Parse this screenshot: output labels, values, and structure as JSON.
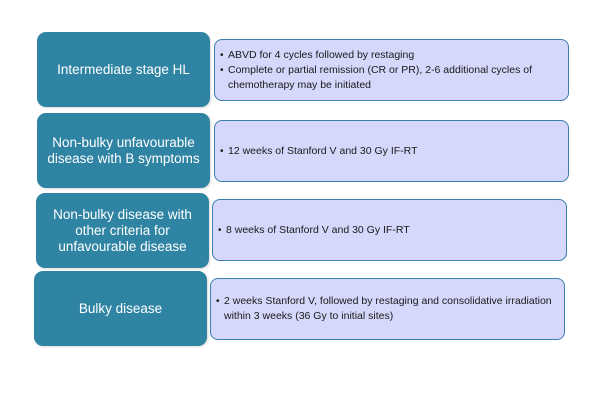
{
  "rows": [
    {
      "label": "Intermediate stage HL",
      "bullets": [
        "ABVD for 4 cycles followed by restaging",
        "Complete or partial remission (CR or PR), 2-6 additional cycles of chemotherapy may be initiated"
      ]
    },
    {
      "label": "Non-bulky unfavourable disease with B symptoms",
      "bullets": [
        "12 weeks of Stanford V and 30 Gy IF-RT"
      ]
    },
    {
      "label": "Non-bulky disease with other criteria for unfavourable disease",
      "bullets": [
        "8 weeks of Stanford V and 30 Gy IF-RT"
      ]
    },
    {
      "label": "Bulky disease",
      "bullets": [
        "2 weeks Stanford V, followed by restaging and consolidative irradiation within 3 weeks (36 Gy to initial sites)"
      ]
    }
  ],
  "bullet_glyph": "•",
  "colors": {
    "label_fill": "#2f84a3",
    "label_text": "#ffffff",
    "detail_fill": "#d5d7fb",
    "detail_border": "#3b7fb0"
  }
}
